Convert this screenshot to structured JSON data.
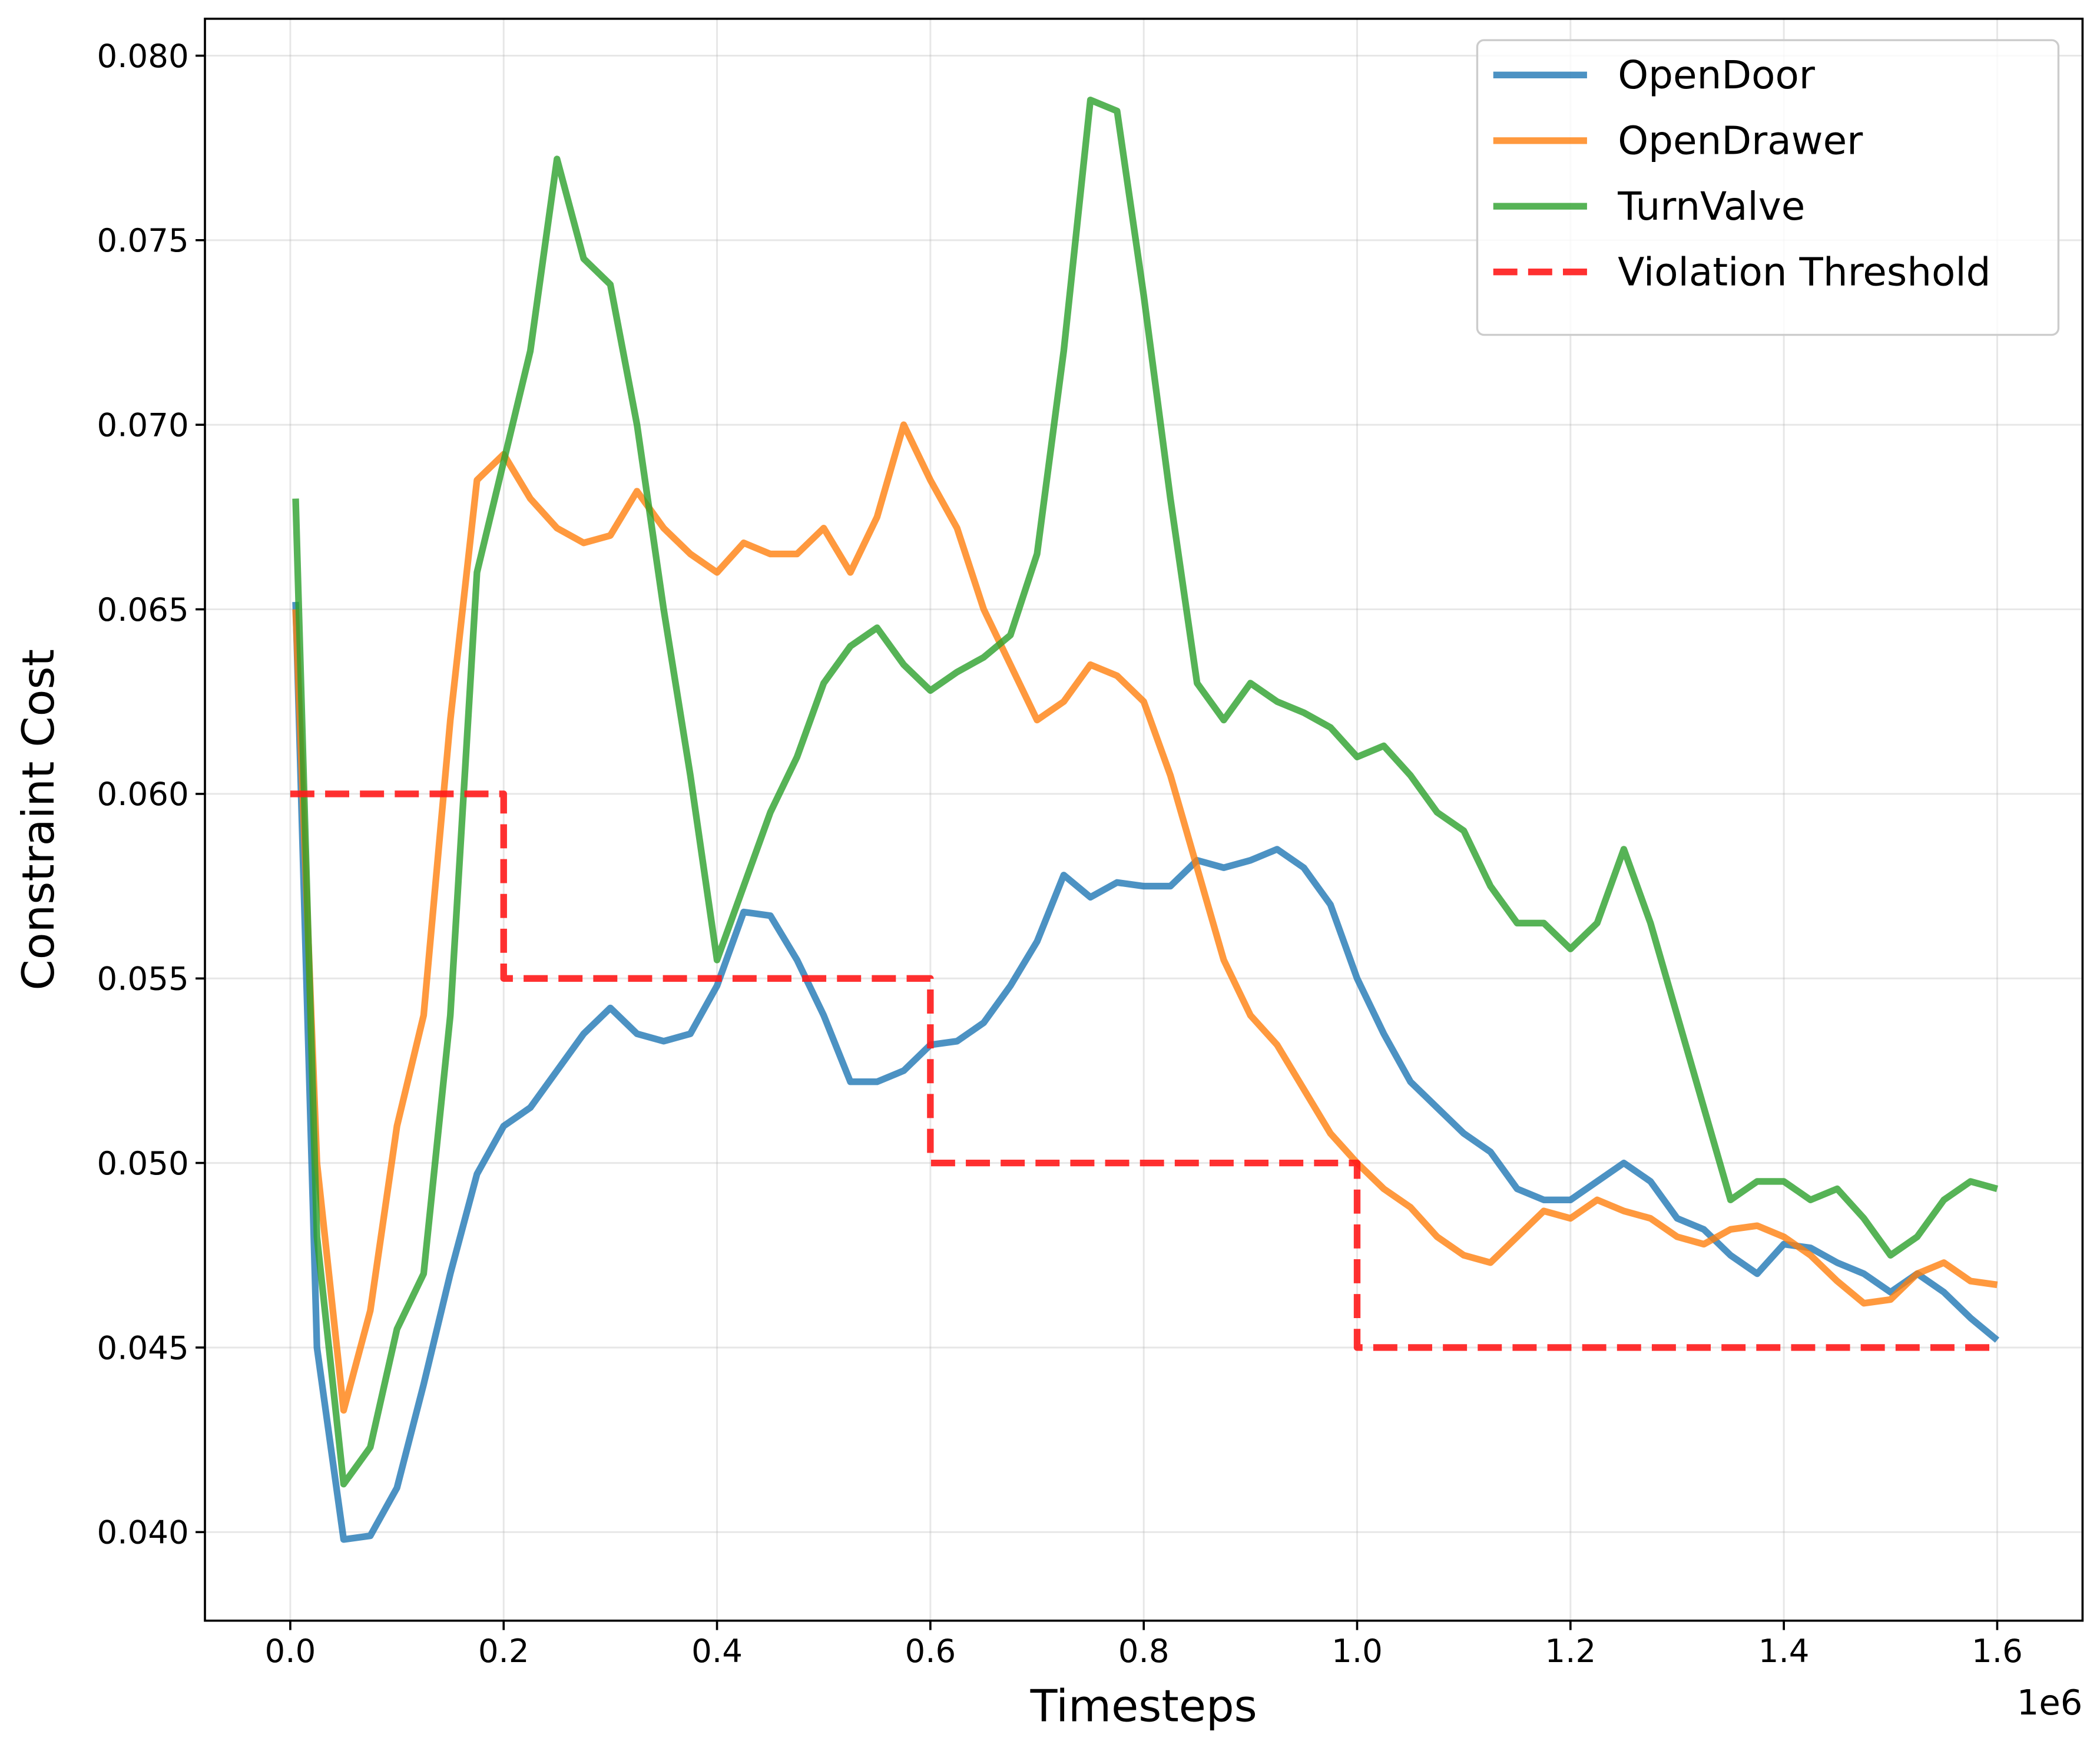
{
  "chart_data": {
    "type": "line",
    "xlabel": "Timesteps",
    "ylabel": "Constraint Cost",
    "x_offset_label": "1e6",
    "xlim": [
      -0.08,
      1.68
    ],
    "ylim": [
      0.0376,
      0.081
    ],
    "xticks": [
      {
        "value": 0,
        "label": "0.0"
      },
      0.2,
      0.4,
      0.6,
      0.8,
      {
        "value": 1,
        "label": "1.0"
      },
      1.2,
      1.4,
      1.6
    ],
    "yticks": [
      {
        "value": 0.04,
        "label": "0.040"
      },
      0.045,
      {
        "value": 0.05,
        "label": "0.050"
      },
      0.055,
      {
        "value": 0.06,
        "label": "0.060"
      },
      0.065,
      {
        "value": 0.07,
        "label": "0.070"
      },
      0.075,
      {
        "value": 0.08,
        "label": "0.080"
      }
    ],
    "grid": true,
    "legend": "upper right",
    "x": [
      0.005,
      0.025,
      0.05,
      0.075,
      0.1,
      0.125,
      0.15,
      0.175,
      0.2,
      0.225,
      0.25,
      0.275,
      0.3,
      0.325,
      0.35,
      0.375,
      0.4,
      0.425,
      0.45,
      0.475,
      0.5,
      0.525,
      0.55,
      0.575,
      0.6,
      0.625,
      0.65,
      0.675,
      0.7,
      0.725,
      0.75,
      0.775,
      0.8,
      0.825,
      0.85,
      0.875,
      0.9,
      0.925,
      0.95,
      0.975,
      1.0,
      1.025,
      1.05,
      1.075,
      1.1,
      1.125,
      1.15,
      1.175,
      1.2,
      1.225,
      1.25,
      1.275,
      1.3,
      1.325,
      1.35,
      1.375,
      1.4,
      1.425,
      1.45,
      1.475,
      1.5,
      1.525,
      1.55,
      1.575,
      1.6
    ],
    "series": [
      {
        "name": "OpenDoor",
        "color": "#1f77b4",
        "style": "solid",
        "values": [
          0.0652,
          0.045,
          0.0398,
          0.0399,
          0.0412,
          0.044,
          0.047,
          0.0497,
          0.051,
          0.0515,
          0.0525,
          0.0535,
          0.0542,
          0.0535,
          0.0533,
          0.0535,
          0.0548,
          0.0568,
          0.0567,
          0.0555,
          0.054,
          0.0522,
          0.0522,
          0.0525,
          0.0532,
          0.0533,
          0.0538,
          0.0548,
          0.056,
          0.0578,
          0.0572,
          0.0576,
          0.0575,
          0.0575,
          0.0582,
          0.058,
          0.0582,
          0.0585,
          0.058,
          0.057,
          0.055,
          0.0535,
          0.0522,
          0.0515,
          0.0508,
          0.0503,
          0.0493,
          0.049,
          0.049,
          0.0495,
          0.05,
          0.0495,
          0.0485,
          0.0482,
          0.0475,
          0.047,
          0.0478,
          0.0477,
          0.0473,
          0.047,
          0.0465,
          0.047,
          0.0465,
          0.0458,
          0.0452
        ]
      },
      {
        "name": "OpenDrawer",
        "color": "#ff7f0e",
        "style": "solid",
        "values": [
          0.065,
          0.05,
          0.0433,
          0.046,
          0.051,
          0.054,
          0.062,
          0.0685,
          0.0692,
          0.068,
          0.0672,
          0.0668,
          0.067,
          0.0682,
          0.0672,
          0.0665,
          0.066,
          0.0668,
          0.0665,
          0.0665,
          0.0672,
          0.066,
          0.0675,
          0.07,
          0.0685,
          0.0672,
          0.065,
          0.0635,
          0.062,
          0.0625,
          0.0635,
          0.0632,
          0.0625,
          0.0605,
          0.058,
          0.0555,
          0.054,
          0.0532,
          0.052,
          0.0508,
          0.05,
          0.0493,
          0.0488,
          0.048,
          0.0475,
          0.0473,
          0.048,
          0.0487,
          0.0485,
          0.049,
          0.0487,
          0.0485,
          0.048,
          0.0478,
          0.0482,
          0.0483,
          0.048,
          0.0475,
          0.0468,
          0.0462,
          0.0463,
          0.047,
          0.0473,
          0.0468,
          0.0467
        ]
      },
      {
        "name": "TurnValve",
        "color": "#2ca02c",
        "style": "solid",
        "values": [
          0.068,
          0.048,
          0.0413,
          0.0423,
          0.0455,
          0.047,
          0.054,
          0.066,
          0.069,
          0.072,
          0.0772,
          0.0745,
          0.0738,
          0.07,
          0.065,
          0.0605,
          0.0555,
          0.0575,
          0.0595,
          0.061,
          0.063,
          0.064,
          0.0645,
          0.0635,
          0.0628,
          0.0633,
          0.0637,
          0.0643,
          0.0665,
          0.072,
          0.0788,
          0.0785,
          0.0735,
          0.068,
          0.063,
          0.062,
          0.063,
          0.0625,
          0.0622,
          0.0618,
          0.061,
          0.0613,
          0.0605,
          0.0595,
          0.059,
          0.0575,
          0.0565,
          0.0565,
          0.0558,
          0.0565,
          0.0585,
          0.0565,
          0.054,
          0.0515,
          0.049,
          0.0495,
          0.0495,
          0.049,
          0.0493,
          0.0485,
          0.0475,
          0.048,
          0.049,
          0.0495,
          0.0493
        ]
      },
      {
        "name": "Violation Threshold",
        "color": "#ff1a1a",
        "style": "dashed",
        "x": [
          0,
          0.2,
          0.2,
          0.6,
          0.6,
          1.0,
          1.0,
          1.6
        ],
        "values": [
          0.06,
          0.06,
          0.055,
          0.055,
          0.05,
          0.05,
          0.045,
          0.045
        ]
      }
    ]
  }
}
